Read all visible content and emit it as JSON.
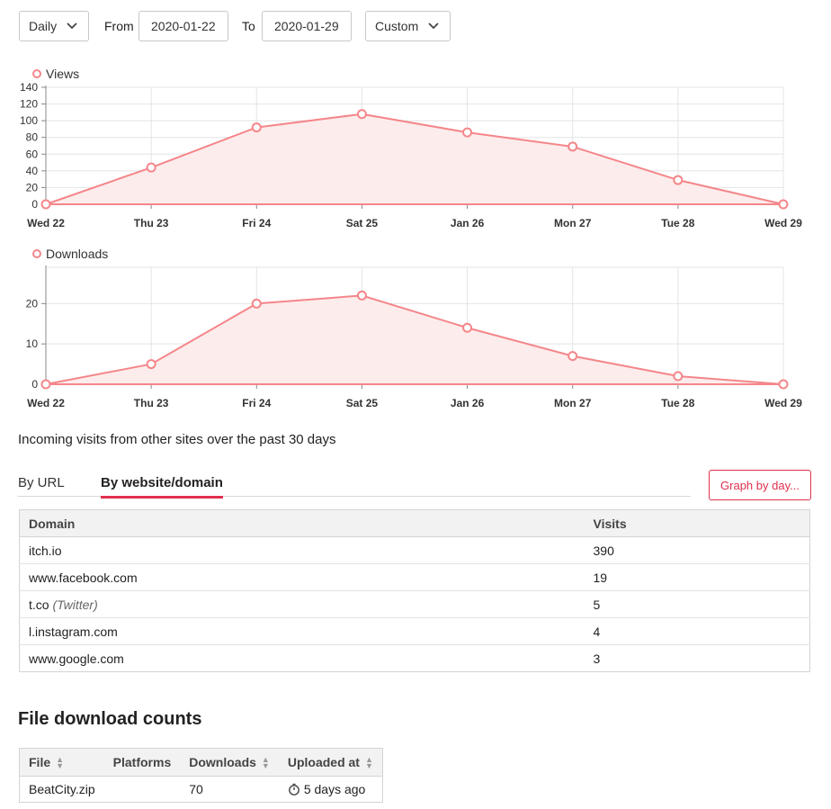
{
  "controls": {
    "interval": "Daily",
    "from_label": "From",
    "from_value": "2020-01-22",
    "to_label": "To",
    "to_value": "2020-01-29",
    "range": "Custom"
  },
  "colors": {
    "series": "#f4868a",
    "fill": "#fdecec",
    "accent": "#e0304e"
  },
  "chart_data": [
    {
      "type": "area",
      "series": [
        {
          "name": "Views",
          "values": [
            0,
            44,
            92,
            108,
            86,
            69,
            29,
            0
          ]
        }
      ],
      "categories": [
        "Wed 22",
        "Thu 23",
        "Fri 24",
        "Sat 25",
        "Jan 26",
        "Mon 27",
        "Tue 28",
        "Wed 29"
      ],
      "yticks": [
        0,
        20,
        40,
        60,
        80,
        100,
        120,
        140
      ],
      "ylim": [
        0,
        140
      ],
      "grid": true,
      "legend": "top-left"
    },
    {
      "type": "area",
      "series": [
        {
          "name": "Downloads",
          "values": [
            0,
            5,
            20,
            22,
            14,
            7,
            2,
            0
          ]
        }
      ],
      "categories": [
        "Wed 22",
        "Thu 23",
        "Fri 24",
        "Sat 25",
        "Jan 26",
        "Mon 27",
        "Tue 28",
        "Wed 29"
      ],
      "yticks": [
        0,
        10,
        20
      ],
      "ylim": [
        0,
        29
      ],
      "grid": true,
      "legend": "top-left"
    }
  ],
  "referrers": {
    "intro": "Incoming visits from other sites over the past 30 days",
    "tabs": [
      "By URL",
      "By website/domain"
    ],
    "active_tab": "By website/domain",
    "graph_button": "Graph by day...",
    "columns": [
      "Domain",
      "Visits"
    ],
    "rows": [
      {
        "domain": "itch.io",
        "note": "",
        "visits": "390"
      },
      {
        "domain": "www.facebook.com",
        "note": "",
        "visits": "19"
      },
      {
        "domain": "t.co",
        "note": "(Twitter)",
        "visits": "5"
      },
      {
        "domain": "l.instagram.com",
        "note": "",
        "visits": "4"
      },
      {
        "domain": "www.google.com",
        "note": "",
        "visits": "3"
      }
    ]
  },
  "downloads": {
    "title": "File download counts",
    "columns": [
      "File",
      "Platforms",
      "Downloads",
      "Uploaded at"
    ],
    "rows": [
      {
        "file": "BeatCity.zip",
        "platforms": "",
        "downloads": "70",
        "uploaded": "5 days ago"
      }
    ],
    "icons": {
      "sort": "sort-icon",
      "uploaded": "clock-icon"
    }
  }
}
